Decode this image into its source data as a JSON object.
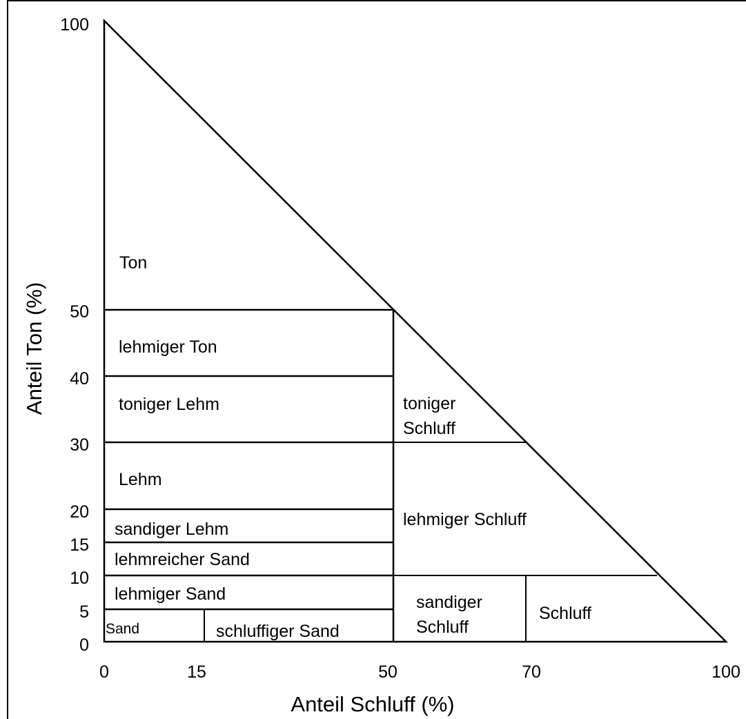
{
  "chart_data": {
    "type": "ternary-texture-diagram",
    "xlabel": "Anteil Schluff (%)",
    "ylabel": "Anteil Ton (%)",
    "xlim": [
      0,
      100
    ],
    "ylim": [
      0,
      100
    ],
    "x_ticks": [
      "0",
      "15",
      "50",
      "70",
      "100"
    ],
    "y_ticks": [
      "0",
      "5",
      "10",
      "15",
      "20",
      "30",
      "40",
      "50",
      "100"
    ],
    "regions": [
      {
        "label": "Ton",
        "ton_range": [
          50,
          100
        ],
        "schluff_range": [
          0,
          50
        ]
      },
      {
        "label": "lehmiger Ton",
        "ton_range": [
          40,
          50
        ],
        "schluff_range": [
          0,
          50
        ]
      },
      {
        "label": "toniger Lehm",
        "ton_range": [
          30,
          40
        ],
        "schluff_range": [
          0,
          50
        ]
      },
      {
        "label": "Lehm",
        "ton_range": [
          20,
          30
        ],
        "schluff_range": [
          0,
          50
        ]
      },
      {
        "label": "sandiger Lehm",
        "ton_range": [
          15,
          20
        ],
        "schluff_range": [
          0,
          50
        ]
      },
      {
        "label": "lehmreicher Sand",
        "ton_range": [
          10,
          15
        ],
        "schluff_range": [
          0,
          50
        ]
      },
      {
        "label": "lehmiger Sand",
        "ton_range": [
          5,
          10
        ],
        "schluff_range": [
          0,
          50
        ]
      },
      {
        "label": "Sand",
        "ton_range": [
          0,
          5
        ],
        "schluff_range": [
          0,
          15
        ]
      },
      {
        "label": "schluffiger Sand",
        "ton_range": [
          0,
          5
        ],
        "schluff_range": [
          15,
          50
        ]
      },
      {
        "label": "toniger Schluff",
        "ton_range": [
          30,
          50
        ],
        "schluff_range": [
          50,
          70
        ]
      },
      {
        "label": "lehmiger Schluff",
        "ton_range": [
          10,
          30
        ],
        "schluff_range": [
          50,
          90
        ]
      },
      {
        "label": "sandiger Schluff",
        "ton_range": [
          0,
          10
        ],
        "schluff_range": [
          50,
          70
        ]
      },
      {
        "label": "Schluff",
        "ton_range": [
          0,
          10
        ],
        "schluff_range": [
          70,
          100
        ]
      }
    ]
  },
  "labels": {
    "ton": "Ton",
    "lehmiger_ton": "lehmiger Ton",
    "toniger_lehm": "toniger Lehm",
    "lehm": "Lehm",
    "sandiger_lehm": "sandiger Lehm",
    "lehmreicher_sand": "lehmreicher Sand",
    "lehmiger_sand": "lehmiger Sand",
    "sand": "Sand",
    "schluffiger_sand": "schluffiger Sand",
    "toniger_schluff_1": "toniger",
    "toniger_schluff_2": "Schluff",
    "lehmiger_schluff": "lehmiger Schluff",
    "sandiger_schluff_1": "sandiger",
    "sandiger_schluff_2": "Schluff",
    "schluff": "Schluff"
  }
}
